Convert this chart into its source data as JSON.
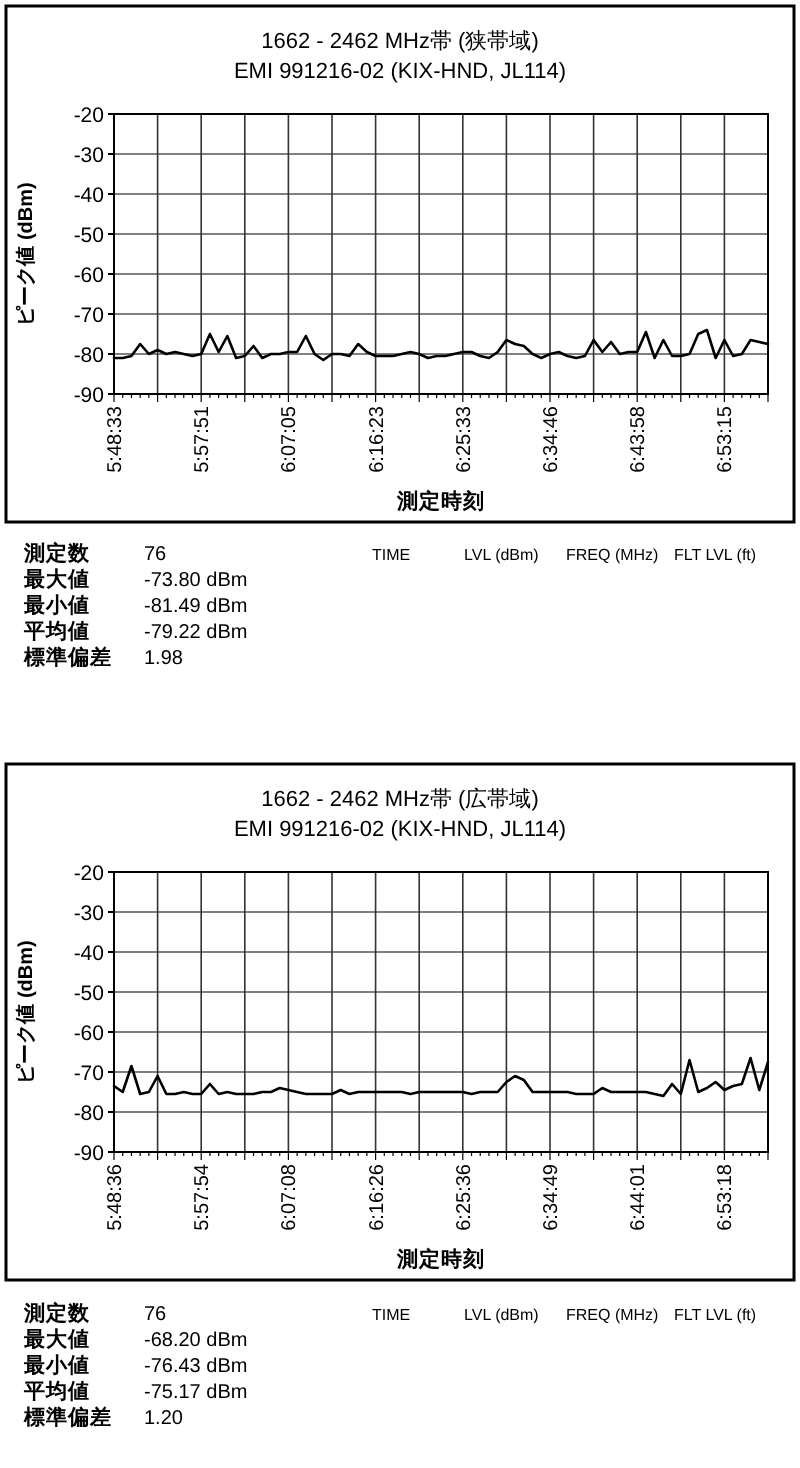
{
  "chart_data": [
    {
      "type": "line",
      "title": "1662 - 2462 MHz帯 (狭帯域)",
      "subtitle": "EMI 991216-02 (KIX-HND, JL114)",
      "xlabel": "測定時刻",
      "ylabel": "ピーク値 (dBm)",
      "categories": [
        "5:48:33",
        null,
        null,
        null,
        null,
        null,
        null,
        null,
        null,
        null,
        "5:57:51",
        null,
        null,
        null,
        null,
        null,
        null,
        null,
        null,
        null,
        "6:07:05",
        null,
        null,
        null,
        null,
        null,
        null,
        null,
        null,
        null,
        "6:16:23",
        null,
        null,
        null,
        null,
        null,
        null,
        null,
        null,
        null,
        "6:25:33",
        null,
        null,
        null,
        null,
        null,
        null,
        null,
        null,
        null,
        "6:34:46",
        null,
        null,
        null,
        null,
        null,
        null,
        null,
        null,
        null,
        "6:43:58",
        null,
        null,
        null,
        null,
        null,
        null,
        null,
        null,
        null,
        "6:53:15",
        null,
        null,
        null,
        null,
        null
      ],
      "values": [
        -81,
        -81,
        -80.5,
        -77.5,
        -80,
        -79,
        -80,
        -79.5,
        -80,
        -80.5,
        -80,
        -75,
        -79.5,
        -75.5,
        -81,
        -80.5,
        -78,
        -81,
        -80,
        -80,
        -79.5,
        -79.5,
        -75.5,
        -80,
        -81.5,
        -80,
        -80,
        -80.5,
        -77.5,
        -79.5,
        -80.5,
        -80.5,
        -80.5,
        -80,
        -79.5,
        -80,
        -81,
        -80.5,
        -80.5,
        -80,
        -79.5,
        -79.5,
        -80.5,
        -81,
        -79.5,
        -76.5,
        -77.5,
        -78,
        -80,
        -81,
        -80,
        -79.5,
        -80.5,
        -81,
        -80.5,
        -76.5,
        -79.5,
        -77,
        -80,
        -79.5,
        -79.5,
        -74.5,
        -81,
        -76.5,
        -80.5,
        -80.5,
        -80,
        -75,
        -74,
        -81,
        -76.5,
        -80.5,
        -80,
        -76.5,
        -77,
        -77.5
      ],
      "color": "#000000",
      "ylim": [
        -90,
        -20
      ],
      "yticks": [
        -90,
        -80,
        -70,
        -60,
        -50,
        -40,
        -30,
        -20
      ],
      "grid": true,
      "annotations": [
        "測定数",
        "76",
        "最大値",
        "-73.80 dBm",
        "最小値",
        "-81.49 dBm",
        "平均値",
        "-79.22 dBm",
        "標準偏差",
        "1.98",
        "TIME",
        "LVL (dBm)",
        "FREQ (MHz)",
        "FLT LVL (ft)"
      ]
    },
    {
      "type": "line",
      "title": "1662 - 2462 MHz帯 (広帯域)",
      "subtitle": "EMI 991216-02 (KIX-HND, JL114)",
      "xlabel": "測定時刻",
      "ylabel": "ピーク値 (dBm)",
      "categories": [
        "5:48:36",
        null,
        null,
        null,
        null,
        null,
        null,
        null,
        null,
        null,
        "5:57:54",
        null,
        null,
        null,
        null,
        null,
        null,
        null,
        null,
        null,
        "6:07:08",
        null,
        null,
        null,
        null,
        null,
        null,
        null,
        null,
        null,
        "6:16:26",
        null,
        null,
        null,
        null,
        null,
        null,
        null,
        null,
        null,
        "6:25:36",
        null,
        null,
        null,
        null,
        null,
        null,
        null,
        null,
        null,
        "6:34:49",
        null,
        null,
        null,
        null,
        null,
        null,
        null,
        null,
        null,
        "6:44:01",
        null,
        null,
        null,
        null,
        null,
        null,
        null,
        null,
        null,
        "6:53:18",
        null,
        null,
        null,
        null,
        null
      ],
      "values": [
        -73.5,
        -75,
        -68.5,
        -75.5,
        -75,
        -71,
        -75.5,
        -75.5,
        -75,
        -75.5,
        -75.5,
        -73,
        -75.5,
        -75,
        -75.5,
        -75.5,
        -75.5,
        -75,
        -75,
        -74,
        -74.5,
        -75,
        -75.5,
        -75.5,
        -75.5,
        -75.5,
        -74.5,
        -75.5,
        -75,
        -75,
        -75,
        -75,
        -75,
        -75,
        -75.5,
        -75,
        -75,
        -75,
        -75,
        -75,
        -75,
        -75.5,
        -75,
        -75,
        -75,
        -72.5,
        -71,
        -72,
        -75,
        -75,
        -75,
        -75,
        -75,
        -75.5,
        -75.5,
        -75.5,
        -74,
        -75,
        -75,
        -75,
        -75,
        -75,
        -75.5,
        -76,
        -73,
        -75.5,
        -67,
        -75,
        -74,
        -72.5,
        -74.5,
        -73.5,
        -73,
        -66.5,
        -74.5,
        -67.5
      ],
      "color": "#000000",
      "ylim": [
        -90,
        -20
      ],
      "yticks": [
        -90,
        -80,
        -70,
        -60,
        -50,
        -40,
        -30,
        -20
      ],
      "grid": true,
      "annotations": [
        "測定数",
        "76",
        "最大値",
        "-68.20 dBm",
        "最小値",
        "-76.43 dBm",
        "平均値",
        "-75.17 dBm",
        "標準偏差",
        "1.20",
        "TIME",
        "LVL (dBm)",
        "FREQ (MHz)",
        "FLT LVL (ft)"
      ]
    }
  ]
}
